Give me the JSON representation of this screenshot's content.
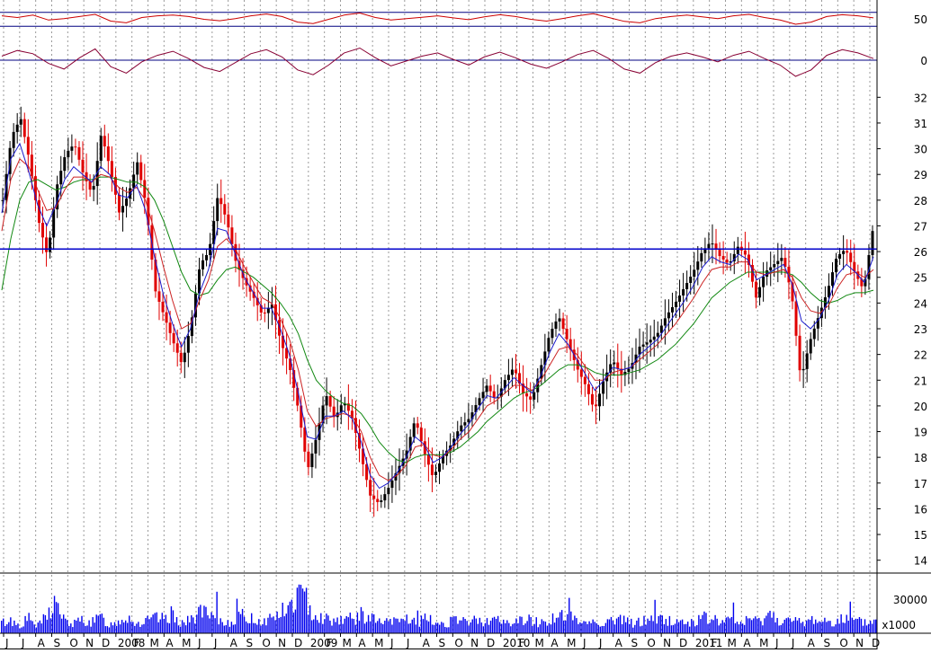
{
  "colors": {
    "grid": "#9a9a9a",
    "frame": "#000000",
    "price_up": "#000000",
    "price_down": "#e00000",
    "ma_short": "#1a1acc",
    "ma_mid": "#cc2222",
    "ma_long": "#118811",
    "resistance": "#0000cc",
    "volume": "#0000ee",
    "rsi": "#cc0000",
    "momentum": "#880033",
    "oscillator_ref": "#000080"
  },
  "chart_data": [
    {
      "type": "line",
      "panel": "rsi-oscillator",
      "y_ticks": [
        "50"
      ],
      "ylim": [
        0,
        100
      ],
      "reference_lines": [
        70,
        30
      ],
      "series": [
        {
          "color": "#cc0000",
          "values": [
            60,
            55,
            62,
            48,
            52,
            58,
            64,
            45,
            40,
            55,
            60,
            62,
            58,
            50,
            46,
            52,
            60,
            65,
            58,
            42,
            38,
            50,
            62,
            68,
            55,
            48,
            52,
            56,
            60,
            54,
            49,
            57,
            63,
            58,
            50,
            45,
            52,
            60,
            66,
            55,
            44,
            40,
            52,
            58,
            62,
            57,
            52,
            60,
            64,
            55,
            48,
            36,
            42,
            58,
            63,
            60,
            54
          ]
        }
      ]
    },
    {
      "type": "line",
      "panel": "momentum-oscillator",
      "y_ticks": [
        "0"
      ],
      "series": [
        {
          "color": "#880033",
          "values": [
            0.5,
            1.2,
            0.8,
            -0.4,
            -1.1,
            0.3,
            1.4,
            -0.8,
            -1.6,
            -0.2,
            0.6,
            1.1,
            0.2,
            -0.9,
            -1.4,
            -0.3,
            0.8,
            1.3,
            0.4,
            -1.2,
            -1.8,
            -0.6,
            0.9,
            1.5,
            0.3,
            -0.7,
            -0.1,
            0.5,
            0.9,
            0.1,
            -0.6,
            0.4,
            1.0,
            0.3,
            -0.5,
            -1.0,
            -0.2,
            0.7,
            1.2,
            0.2,
            -1.1,
            -1.6,
            -0.3,
            0.5,
            0.9,
            0.4,
            -0.2,
            0.6,
            1.1,
            0.2,
            -0.6,
            -2.0,
            -1.2,
            0.6,
            1.3,
            0.9,
            0.2
          ]
        }
      ]
    },
    {
      "type": "line",
      "panel": "price",
      "ylim": [
        13.5,
        32.5
      ],
      "y_ticks": [
        "32",
        "31",
        "30",
        "29",
        "28",
        "27",
        "26",
        "25",
        "24",
        "23",
        "22",
        "21",
        "20",
        "19",
        "18",
        "17",
        "16",
        "15",
        "14"
      ],
      "resistance_level": 26.1,
      "series": [
        {
          "color": "#000000",
          "values": [
            28.0,
            30.5,
            31.2,
            29.5,
            27.2,
            25.8,
            28.5,
            29.8,
            30.2,
            29.0,
            28.2,
            30.6,
            29.2,
            27.5,
            28.2,
            29.5,
            27.8,
            24.5,
            23.5,
            22.5,
            21.6,
            23.2,
            25.5,
            26.0,
            28.2,
            27.2,
            25.6,
            24.8,
            24.2,
            23.5,
            24.0,
            22.5,
            21.5,
            19.8,
            17.5,
            18.8,
            20.5,
            19.5,
            20.2,
            19.5,
            18.0,
            16.5,
            16.2,
            16.8,
            17.5,
            18.2,
            19.5,
            18.2,
            17.2,
            18.0,
            18.5,
            19.2,
            19.5,
            20.2,
            20.8,
            20.2,
            21.0,
            21.5,
            20.5,
            20.2,
            21.5,
            22.8,
            23.5,
            22.5,
            21.5,
            20.8,
            19.8,
            21.0,
            21.8,
            21.2,
            21.5,
            22.3,
            22.5,
            22.8,
            23.5,
            24.0,
            24.6,
            25.2,
            26.0,
            26.4,
            25.8,
            25.5,
            26.2,
            25.8,
            24.2,
            25.2,
            25.5,
            25.8,
            24.3,
            21.0,
            22.5,
            23.5,
            24.5,
            25.8,
            26.1,
            25.2,
            24.5,
            26.8
          ]
        },
        {
          "color": "#1a1acc",
          "values": [
            27.5,
            29.6,
            30.2,
            29.1,
            27.8,
            27.0,
            27.8,
            28.8,
            29.3,
            29.0,
            28.7,
            29.3,
            29.0,
            28.2,
            28.1,
            28.6,
            27.6,
            25.8,
            24.3,
            23.2,
            22.3,
            23.0,
            24.4,
            25.3,
            26.9,
            26.8,
            25.9,
            25.0,
            24.4,
            23.8,
            23.8,
            23.0,
            22.0,
            20.5,
            18.8,
            18.7,
            19.6,
            19.6,
            19.8,
            19.5,
            18.6,
            17.3,
            16.8,
            17.0,
            17.4,
            18.0,
            18.8,
            18.5,
            17.8,
            18.0,
            18.4,
            18.9,
            19.3,
            19.9,
            20.4,
            20.3,
            20.7,
            21.1,
            20.8,
            20.5,
            21.2,
            22.1,
            22.8,
            22.4,
            21.8,
            21.2,
            20.6,
            21.0,
            21.5,
            21.4,
            21.5,
            22.0,
            22.3,
            22.6,
            23.1,
            23.6,
            24.1,
            24.7,
            25.4,
            25.8,
            25.6,
            25.5,
            25.9,
            25.7,
            24.9,
            25.1,
            25.3,
            25.5,
            24.7,
            23.3,
            23.0,
            23.4,
            24.1,
            25.1,
            25.5,
            25.2,
            24.8,
            25.8
          ]
        },
        {
          "color": "#cc2222",
          "values": [
            26.8,
            28.8,
            29.6,
            29.3,
            28.4,
            27.6,
            27.7,
            28.4,
            28.9,
            28.9,
            28.7,
            29.0,
            28.9,
            28.5,
            28.3,
            28.5,
            28.0,
            26.8,
            25.4,
            24.1,
            23.0,
            23.2,
            24.1,
            24.9,
            26.2,
            26.5,
            26.1,
            25.4,
            24.8,
            24.2,
            24.0,
            23.4,
            22.6,
            21.4,
            19.8,
            19.2,
            19.5,
            19.6,
            19.7,
            19.6,
            19.0,
            18.0,
            17.3,
            17.1,
            17.3,
            17.7,
            18.4,
            18.5,
            18.1,
            18.0,
            18.3,
            18.7,
            19.0,
            19.5,
            20.0,
            20.2,
            20.5,
            20.8,
            20.8,
            20.6,
            21.0,
            21.6,
            22.2,
            22.3,
            22.0,
            21.5,
            21.0,
            21.0,
            21.3,
            21.4,
            21.5,
            21.8,
            22.1,
            22.4,
            22.8,
            23.2,
            23.7,
            24.2,
            24.8,
            25.3,
            25.4,
            25.4,
            25.6,
            25.6,
            25.2,
            25.1,
            25.2,
            25.3,
            25.0,
            24.2,
            23.7,
            23.6,
            23.9,
            24.6,
            25.1,
            25.2,
            25.0,
            25.3
          ]
        },
        {
          "color": "#118811",
          "values": [
            24.5,
            26.5,
            28.0,
            28.7,
            28.8,
            28.6,
            28.4,
            28.5,
            28.7,
            28.8,
            28.8,
            28.9,
            28.9,
            28.8,
            28.7,
            28.7,
            28.5,
            28.0,
            27.2,
            26.2,
            25.2,
            24.5,
            24.3,
            24.4,
            24.9,
            25.3,
            25.4,
            25.2,
            25.0,
            24.7,
            24.4,
            24.0,
            23.5,
            22.8,
            21.8,
            21.0,
            20.6,
            20.3,
            20.1,
            20.0,
            19.7,
            19.2,
            18.6,
            18.2,
            17.9,
            17.8,
            18.0,
            18.1,
            18.1,
            18.1,
            18.2,
            18.4,
            18.7,
            19.0,
            19.4,
            19.7,
            20.0,
            20.3,
            20.5,
            20.6,
            20.8,
            21.1,
            21.4,
            21.6,
            21.6,
            21.5,
            21.3,
            21.2,
            21.2,
            21.2,
            21.3,
            21.4,
            21.6,
            21.8,
            22.1,
            22.4,
            22.8,
            23.2,
            23.7,
            24.2,
            24.5,
            24.8,
            25.0,
            25.2,
            25.2,
            25.2,
            25.2,
            25.2,
            25.1,
            24.8,
            24.4,
            24.1,
            24.0,
            24.1,
            24.3,
            24.4,
            24.4,
            24.5
          ]
        }
      ]
    },
    {
      "type": "bar",
      "panel": "volume",
      "y_ticks": [
        "30000"
      ],
      "unit_label": "x1000",
      "values": [
        18,
        22,
        14,
        26,
        12,
        30,
        55,
        20,
        16,
        24,
        18,
        28,
        14,
        22,
        30,
        16,
        20,
        26,
        24,
        34,
        18,
        22,
        40,
        28,
        22,
        18,
        26,
        30,
        24,
        20,
        28,
        36,
        44,
        70,
        52,
        30,
        26,
        22,
        28,
        24,
        32,
        26,
        20,
        18,
        22,
        26,
        18,
        24,
        20,
        16,
        22,
        18,
        24,
        20,
        26,
        22,
        18,
        20,
        24,
        22,
        18,
        26,
        30,
        24,
        20,
        22,
        18,
        20,
        24,
        22,
        18,
        20,
        26,
        24,
        22,
        20,
        18,
        22,
        26,
        24,
        20,
        22,
        18,
        24,
        20,
        34,
        26,
        22,
        20,
        18,
        24,
        22,
        20,
        26,
        22,
        20,
        18,
        22
      ]
    },
    {
      "type": "axis",
      "panel": "time-axis",
      "tick_labels": [
        "J",
        "J",
        "A",
        "S",
        "O",
        "N",
        "D",
        "2008",
        "F",
        "M",
        "A",
        "M",
        "J",
        "J",
        "A",
        "S",
        "O",
        "N",
        "D",
        "2009",
        "F",
        "M",
        "A",
        "M",
        "J",
        "J",
        "A",
        "S",
        "O",
        "N",
        "D",
        "2010",
        "F",
        "M",
        "A",
        "M",
        "J",
        "J",
        "A",
        "S",
        "O",
        "N",
        "D",
        "2011",
        "F",
        "M",
        "A",
        "M",
        "J",
        "J",
        "A",
        "S",
        "O",
        "N",
        "D"
      ]
    }
  ]
}
